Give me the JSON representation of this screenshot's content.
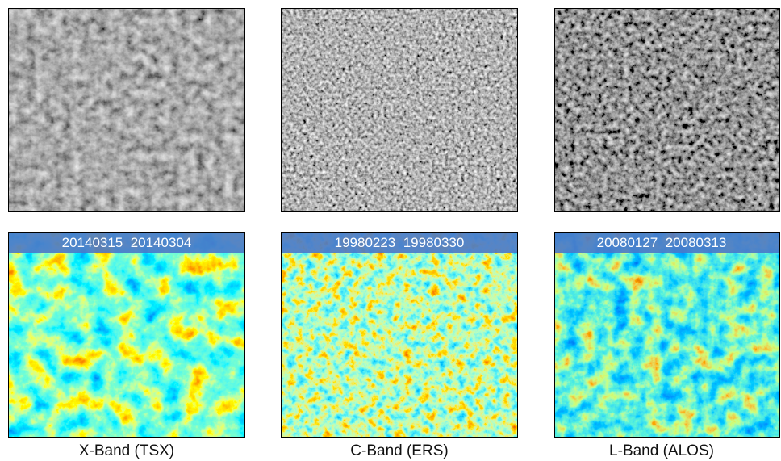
{
  "panels": [
    {
      "date_label": "20140315  20140304",
      "caption": "X-Band (TSX)"
    },
    {
      "date_label": "19980223  19980330",
      "caption": "C-Band (ERS)"
    },
    {
      "date_label": "20080127  20080313",
      "caption": "L-Band (ALOS)"
    }
  ]
}
